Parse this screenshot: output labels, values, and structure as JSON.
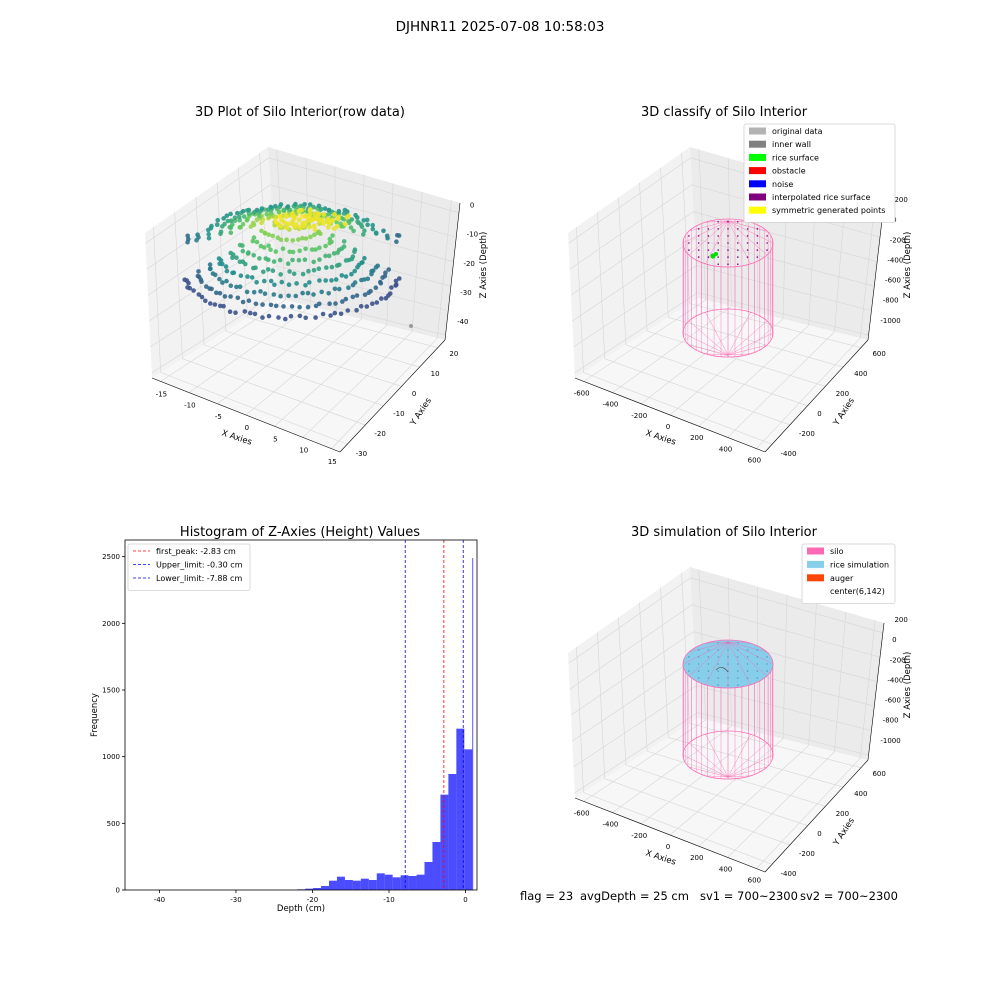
{
  "figure_title": "DJHNR11 2025-07-08 10:58:03",
  "status_line": {
    "flag": "flag = 23",
    "avg_depth": "avgDepth = 25 cm",
    "sv1": "sv1 = 700~2300",
    "sv2": "sv2 = 700~2300"
  },
  "chart_data": [
    {
      "type": "scatter",
      "subtype": "3d-scatter",
      "title": "3D Plot of Silo Interior(row data)",
      "xlabel": "X Axies",
      "ylabel": "Y Axies",
      "zlabel": "Z Axies (Depth)",
      "x_ticks": [
        "-15",
        "-10",
        "-5",
        "0",
        "5",
        "10",
        "15"
      ],
      "y_ticks": [
        "-30",
        "-20",
        "-10",
        "0",
        "10",
        "20"
      ],
      "z_ticks": [
        "0",
        "-10",
        "-20",
        "-30",
        "-40"
      ],
      "xlim": [
        -17,
        16
      ],
      "ylim": [
        -33,
        25
      ],
      "zlim": [
        -45,
        2
      ],
      "colormap": [
        "#3b528b",
        "#21918c",
        "#5ec962",
        "#fde725"
      ],
      "points_summary": "dense ring-shaped cloud of roughly 1000 points; depth about 0 at the near-surface centre down to about -25 at the outer edges; one isolated grey point near z = -40"
    },
    {
      "type": "scatter",
      "subtype": "3d-classification",
      "title": "3D classify of Silo Interior",
      "xlabel": "X Axies",
      "ylabel": "Y Axies",
      "zlabel": "Z Axies (Depth)",
      "x_ticks": [
        "-600",
        "-400",
        "-200",
        "0",
        "200",
        "400",
        "600"
      ],
      "y_ticks": [
        "-400",
        "-200",
        "0",
        "200",
        "400",
        "600"
      ],
      "z_ticks": [
        "200",
        "0",
        "-200",
        "-400",
        "-600",
        "-800",
        "-1000"
      ],
      "legend_position": "top-right",
      "legend": [
        {
          "label": "original data",
          "color": "#b3b3b3"
        },
        {
          "label": "inner wall",
          "color": "#808080"
        },
        {
          "label": "rice surface",
          "color": "#00ff00"
        },
        {
          "label": "obstacle",
          "color": "#ff0000"
        },
        {
          "label": "noise",
          "color": "#0000ff"
        },
        {
          "label": "interpolated rice surface",
          "color": "#800080"
        },
        {
          "label": "symmetric generated points",
          "color": "#ffff00"
        }
      ],
      "silo_color": "#ff69b4"
    },
    {
      "type": "bar",
      "subtype": "histogram",
      "title": "Histogram of Z-Axies (Height) Values",
      "xlabel": "Depth (cm)",
      "ylabel": "Frequency",
      "x_ticks": [
        -40,
        -30,
        -20,
        -10,
        0
      ],
      "y_ticks": [
        0,
        500,
        1000,
        1500,
        2000,
        2500
      ],
      "xlim": [
        -44.5,
        1.5
      ],
      "ylim": [
        0,
        2625
      ],
      "bar_color": "#0000ff",
      "bins": [
        {
          "x0": -22.0,
          "x1": -20.96,
          "v": 5
        },
        {
          "x0": -20.96,
          "x1": -19.92,
          "v": 10
        },
        {
          "x0": -19.92,
          "x1": -18.88,
          "v": 15
        },
        {
          "x0": -18.88,
          "x1": -17.84,
          "v": 30
        },
        {
          "x0": -17.84,
          "x1": -16.8,
          "v": 70
        },
        {
          "x0": -16.8,
          "x1": -15.76,
          "v": 100
        },
        {
          "x0": -15.76,
          "x1": -14.72,
          "v": 75
        },
        {
          "x0": -14.72,
          "x1": -13.68,
          "v": 70
        },
        {
          "x0": -13.68,
          "x1": -12.64,
          "v": 85
        },
        {
          "x0": -12.64,
          "x1": -11.6,
          "v": 75
        },
        {
          "x0": -11.6,
          "x1": -10.56,
          "v": 125
        },
        {
          "x0": -10.56,
          "x1": -9.52,
          "v": 115
        },
        {
          "x0": -9.52,
          "x1": -8.48,
          "v": 95
        },
        {
          "x0": -8.48,
          "x1": -7.44,
          "v": 110
        },
        {
          "x0": -7.44,
          "x1": -6.4,
          "v": 105
        },
        {
          "x0": -6.4,
          "x1": -5.36,
          "v": 115
        },
        {
          "x0": -5.36,
          "x1": -4.32,
          "v": 210
        },
        {
          "x0": -4.32,
          "x1": -3.28,
          "v": 360
        },
        {
          "x0": -3.28,
          "x1": -2.24,
          "v": 715
        },
        {
          "x0": -2.24,
          "x1": -1.2,
          "v": 870
        },
        {
          "x0": -1.2,
          "x1": -0.16,
          "v": 1210
        },
        {
          "x0": -0.16,
          "x1": 0.88,
          "v": 1055
        },
        {
          "x0": 0.88,
          "x1": 1.0,
          "v": 2490
        }
      ],
      "vlines": [
        {
          "label": "first_peak: -2.83 cm",
          "x": -2.83,
          "color": "#ff0000"
        },
        {
          "label": "Upper_limit: -0.30 cm",
          "x": -0.3,
          "color": "#0000ff"
        },
        {
          "label": "Lower_limit: -7.88 cm",
          "x": -7.88,
          "color": "#0000ff"
        }
      ],
      "legend_position": "top-left"
    },
    {
      "type": "scatter",
      "subtype": "3d-simulation",
      "title": "3D simulation of Silo Interior",
      "xlabel": "X Axies",
      "ylabel": "Y Axies",
      "zlabel": "Z Axies (Depth)",
      "x_ticks": [
        "-600",
        "-400",
        "-200",
        "0",
        "200",
        "400",
        "600"
      ],
      "y_ticks": [
        "-400",
        "-200",
        "0",
        "200",
        "400",
        "600"
      ],
      "z_ticks": [
        "200",
        "0",
        "-200",
        "-400",
        "-600",
        "-800",
        "-1000"
      ],
      "legend_position": "top-right",
      "legend": [
        {
          "label": "silo",
          "color": "#ff69b4"
        },
        {
          "label": "rice simulation",
          "color": "#87ceeb"
        },
        {
          "label": "auger",
          "color": "#ff4500"
        },
        {
          "label": "center(6,142)",
          "color": ""
        }
      ]
    }
  ]
}
